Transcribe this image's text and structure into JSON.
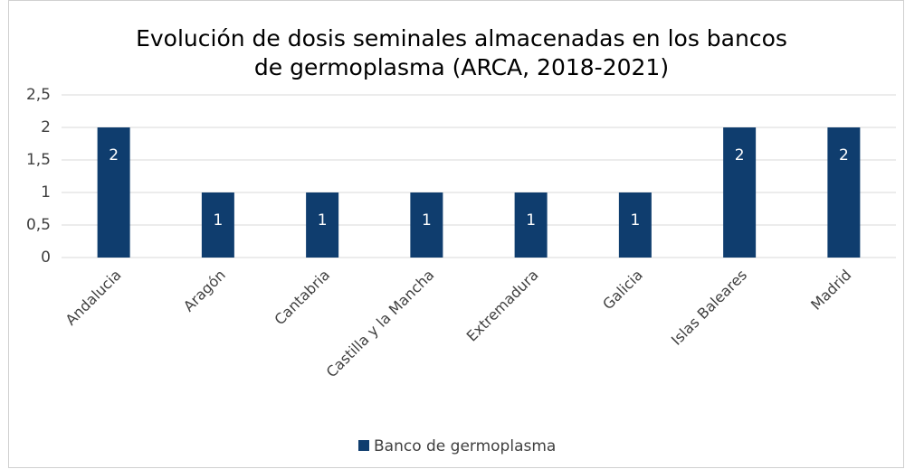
{
  "chart_data": {
    "type": "bar",
    "title": [
      "Evolución de dosis seminales almacenadas en los bancos",
      "de germoplasma (ARCA, 2018-2021)"
    ],
    "categories": [
      "Andalucia",
      "Aragón",
      "Cantabria",
      "Castilla y la Mancha",
      "Extremadura",
      "Galicia",
      "Islas Baleares",
      "Madrid"
    ],
    "series": [
      {
        "name": "Banco de germoplasma",
        "color": "#0f3d6e",
        "values": [
          2,
          1,
          1,
          1,
          1,
          1,
          2,
          2
        ]
      }
    ],
    "ylim": [
      0,
      2.5
    ],
    "yticks": [
      0,
      {
        "value": 0.5,
        "label": "0,5"
      },
      1,
      {
        "value": 1.5,
        "label": "1,5"
      },
      2,
      {
        "value": 2.5,
        "label": "2,5"
      }
    ],
    "grid": true,
    "legend": "bottom"
  }
}
